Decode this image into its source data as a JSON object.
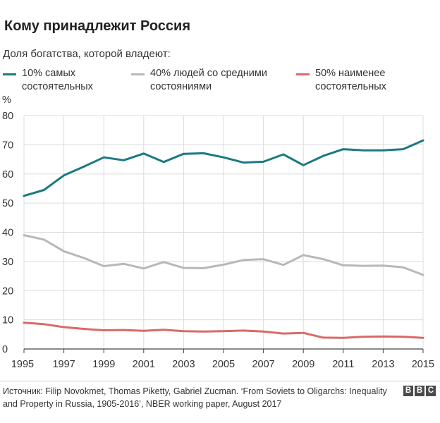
{
  "title": "Кому принадлежит Россия",
  "subtitle": "Доля богатства, которой владеют:",
  "legend": [
    {
      "label": "10% самых\nсостоятельных",
      "color": "#1a7a80"
    },
    {
      "label": "40% людей со средними\nсостояниями",
      "color": "#b8b8b8"
    },
    {
      "label": "50% наименее\nсостоятельных",
      "color": "#d96a66"
    }
  ],
  "source": "Источник: Filip Novokmet, Thomas Piketty, Gabriel Zucman. ‘From Soviets to Oligarchs: Inequality and Property in Russia, 1905-2016’, NBER working paper, August 2017",
  "logo": [
    "B",
    "B",
    "C"
  ],
  "chart_data": {
    "type": "line",
    "ylabel": "%",
    "xlabel": "",
    "ylim": [
      0,
      80
    ],
    "yticks": [
      0,
      10,
      20,
      30,
      40,
      50,
      60,
      70,
      80
    ],
    "xlim": [
      1995,
      2015
    ],
    "xticks": [
      1995,
      1997,
      1999,
      2001,
      2003,
      2005,
      2007,
      2009,
      2011,
      2013,
      2015
    ],
    "grid": {
      "vertical": true,
      "horizontal": true
    },
    "x": [
      1995,
      1996,
      1997,
      1998,
      1999,
      2000,
      2001,
      2002,
      2003,
      2004,
      2005,
      2006,
      2007,
      2008,
      2009,
      2010,
      2011,
      2012,
      2013,
      2014,
      2015
    ],
    "series": [
      {
        "name": "10% самых состоятельных",
        "color": "#1a7a80",
        "values": [
          52.5,
          54.5,
          59.5,
          62.5,
          65.7,
          64.7,
          67.0,
          64.1,
          66.9,
          67.1,
          65.7,
          63.9,
          64.2,
          66.7,
          63.0,
          66.2,
          68.5,
          68.1,
          68.1,
          68.5,
          71.5
        ]
      },
      {
        "name": "40% людей со средними состояниями",
        "color": "#b8b8b8",
        "values": [
          39.0,
          37.5,
          33.5,
          31.2,
          28.4,
          29.2,
          27.6,
          29.8,
          27.8,
          27.7,
          28.9,
          30.5,
          30.8,
          28.8,
          32.2,
          30.8,
          28.7,
          28.5,
          28.6,
          28.0,
          25.4
        ]
      },
      {
        "name": "50% наименее состоятельных",
        "color": "#d96a66",
        "values": [
          9.0,
          8.5,
          7.5,
          6.9,
          6.4,
          6.5,
          6.2,
          6.6,
          6.1,
          6.0,
          6.1,
          6.3,
          6.0,
          5.3,
          5.5,
          3.9,
          3.8,
          4.2,
          4.3,
          4.2,
          3.8
        ]
      }
    ]
  }
}
